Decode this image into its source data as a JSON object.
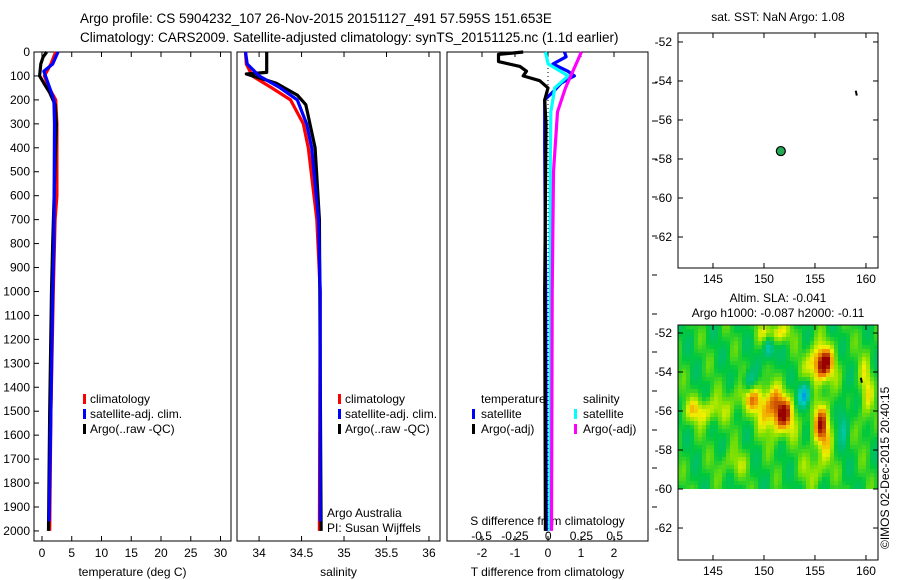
{
  "header": {
    "line1": "Argo profile: CS 5904232_107 26-Nov-2015 20151127_491 57.595S 151.653E",
    "line2": "Climatology: CARS2009. Satellite-adjusted climatology: synTS_20151125.nc (1.1d earlier)"
  },
  "credit": "©IMOS 02-Dec-2015 20:40:15",
  "chart_data": [
    {
      "type": "line",
      "id": "temperature-profile",
      "xlabel": "temperature (deg C)",
      "ylabel": "depth",
      "xlim": [
        -1.34,
        31.76
      ],
      "ylim": [
        0,
        2042
      ],
      "y_inverted": true,
      "xticks": [
        0,
        5,
        10,
        15,
        20,
        25,
        30
      ],
      "xtick_labels": [
        "0",
        "5",
        "10",
        "15",
        "20",
        "25",
        "30"
      ],
      "yticks": [
        0,
        100,
        200,
        300,
        400,
        500,
        600,
        700,
        800,
        900,
        1000,
        1100,
        1200,
        1300,
        1400,
        1500,
        1600,
        1700,
        1800,
        1900,
        2000
      ],
      "ytick_labels": [
        "0",
        "100",
        "200",
        "300",
        "400",
        "500",
        "600",
        "700",
        "800",
        "900",
        "1000",
        "1100",
        "1200",
        "1300",
        "1400",
        "1500",
        "1600",
        "1700",
        "1800",
        "1900",
        "2000"
      ],
      "legend": [
        "climatology",
        "satellite-adj. clim.",
        "Argo(..raw -QC)"
      ],
      "series": [
        {
          "name": "climatology",
          "color": "#ff0000",
          "depth": [
            0,
            50,
            100,
            150,
            200,
            300,
            600,
            700,
            1000,
            1500,
            2000
          ],
          "values": [
            2.3,
            1.5,
            0.4,
            1.2,
            2.3,
            2.5,
            2.5,
            2.2,
            1.9,
            1.5,
            1.3
          ]
        },
        {
          "name": "Argo(..raw -QC)",
          "color": "#000000",
          "depth": [
            0,
            20,
            50,
            100,
            130,
            170,
            220,
            300,
            800,
            1000,
            1500,
            2000
          ],
          "values": [
            0.8,
            0.2,
            -0.2,
            -0.4,
            0.3,
            1.3,
            2.2,
            2.4,
            1.8,
            1.6,
            1.3,
            1.1
          ]
        },
        {
          "name": "satellite-adj. clim.",
          "color": "#0000ff",
          "depth": [
            0,
            50,
            80,
            150,
            200,
            300,
            800,
            1000,
            1500,
            1960
          ],
          "values": [
            2.7,
            1.8,
            0.3,
            1.3,
            2.0,
            2.1,
            2.0,
            1.8,
            1.5,
            1.2
          ]
        }
      ]
    },
    {
      "type": "line",
      "id": "salinity-profile",
      "xlabel": "salinity",
      "xlim": [
        33.74,
        36.13
      ],
      "ylim": [
        0,
        2042
      ],
      "y_inverted": true,
      "xticks": [
        34,
        34.5,
        35,
        35.5,
        36
      ],
      "xtick_labels": [
        "34",
        "34.5",
        "35",
        "35.5",
        "36"
      ],
      "legend": [
        "climatology",
        "satellite-adj. clim.",
        "Argo(..raw -QC)"
      ],
      "annotation": [
        "Argo Australia",
        "PI: Susan Wijffels"
      ],
      "series": [
        {
          "name": "climatology",
          "color": "#ff0000",
          "depth": [
            0,
            50,
            100,
            150,
            200,
            300,
            400,
            700,
            1000,
            2000
          ],
          "values": [
            33.84,
            33.85,
            33.92,
            34.15,
            34.37,
            34.52,
            34.58,
            34.68,
            34.72,
            34.71
          ]
        },
        {
          "name": "Argo(..raw -QC)",
          "color": "#000000",
          "depth": [
            0,
            85,
            92,
            130,
            180,
            220,
            400,
            700,
            2000
          ],
          "values": [
            34.09,
            34.09,
            33.85,
            34.2,
            34.45,
            34.55,
            34.66,
            34.71,
            34.73
          ]
        },
        {
          "name": "satellite-adj. clim.",
          "color": "#0000ff",
          "depth": [
            0,
            50,
            100,
            150,
            200,
            300,
            400,
            700,
            1000,
            1960
          ],
          "values": [
            33.84,
            33.86,
            34.0,
            34.25,
            34.45,
            34.56,
            34.62,
            34.7,
            34.72,
            34.72
          ]
        }
      ]
    },
    {
      "type": "line",
      "id": "difference-profile",
      "xlabel": "T difference from climatology",
      "x2label": "S difference from climatology",
      "xlim": [
        -3.06,
        3.03
      ],
      "x2lim": [
        -0.76,
        0.75
      ],
      "ylim": [
        0,
        2042
      ],
      "y_inverted": true,
      "xticks": [
        -2,
        -1,
        0,
        1,
        2
      ],
      "xtick_labels": [
        "-2",
        "-1",
        "0",
        "1",
        "2"
      ],
      "x2ticks": [
        -0.5,
        -0.25,
        0,
        0.25,
        0.5
      ],
      "x2tick_labels": [
        "-0.5",
        "-0.25",
        "0",
        "0.25",
        "0.5"
      ],
      "legend_groups": [
        {
          "title": "temperature",
          "items": [
            "satellite",
            "Argo(-adj)"
          ]
        },
        {
          "title": "salinity",
          "items": [
            "satellite",
            "Argo(-adj)"
          ]
        }
      ],
      "series": [
        {
          "name": "temperature satellite",
          "axis": "T",
          "color": "#0000ff",
          "depth": [
            0,
            20,
            50,
            80,
            100,
            130,
            160,
            200,
            400,
            1000,
            2000
          ],
          "values": [
            0.5,
            0.55,
            0.15,
            0.6,
            0.8,
            0.4,
            0.2,
            -0.1,
            -0.1,
            -0.07,
            -0.05
          ]
        },
        {
          "name": "temperature Argo(-adj)",
          "axis": "T",
          "color": "#000000",
          "depth": [
            0,
            10,
            40,
            60,
            80,
            100,
            120,
            150,
            200,
            300,
            1000,
            2000
          ],
          "values": [
            -0.75,
            -1.5,
            -1.5,
            -0.85,
            -0.65,
            -0.75,
            -0.25,
            0,
            -0.1,
            -0.06,
            -0.1,
            -0.08
          ]
        },
        {
          "name": "salinity satellite",
          "axis": "S",
          "color": "#00ffff",
          "depth": [
            0,
            50,
            100,
            150,
            250,
            500,
            1000,
            2000
          ],
          "values": [
            -0.02,
            0.0,
            0.15,
            0.05,
            0.02,
            0.015,
            0.015,
            0.012
          ]
        },
        {
          "name": "salinity Argo(-adj)",
          "axis": "S",
          "color": "#ff00ff",
          "depth": [
            0,
            50,
            100,
            150,
            250,
            500,
            1000,
            2000
          ],
          "values": [
            0.25,
            0.21,
            0.17,
            0.13,
            0.07,
            0.04,
            0.03,
            0.025
          ]
        }
      ]
    },
    {
      "type": "scatter",
      "id": "location-map",
      "title": "sat. SST: NaN Argo: 1.08",
      "xlim": [
        141.57,
        161.18
      ],
      "ylim": [
        -63.59,
        -51.54
      ],
      "xticks": [
        145,
        150,
        155,
        160
      ],
      "xtick_labels": [
        "145",
        "150",
        "155",
        "160"
      ],
      "yticks": [
        -52,
        -54,
        -56,
        -58,
        -60,
        -62
      ],
      "ytick_labels": [
        "-52",
        "-54",
        "-56",
        "-58",
        "-60",
        "-62"
      ],
      "points": [
        {
          "lon": 151.653,
          "lat": -57.595,
          "color": "#22aa55"
        }
      ],
      "track": [
        [
          159.0,
          -54.5
        ],
        [
          159.1,
          -54.75
        ]
      ]
    },
    {
      "type": "heatmap",
      "id": "sla-map",
      "title1": "Altim. SLA: -0.041",
      "title2": "Argo h1000: -0.087 h2000: -0.11",
      "xlim": [
        141.57,
        161.18
      ],
      "ylim": [
        -63.64,
        -51.59
      ],
      "data_lat_min": -60,
      "xticks": [
        145,
        150,
        155,
        160
      ],
      "xtick_labels": [
        "145",
        "150",
        "155",
        "160"
      ],
      "yticks": [
        -52,
        -54,
        -56,
        -58,
        -60,
        -62
      ],
      "ytick_labels": [
        "-52",
        "-54",
        "-56",
        "-58",
        "-60",
        "-62"
      ],
      "anomalies": [
        {
          "lon": 155.6,
          "lat": -53.6,
          "amp": 1.0,
          "slon": 0.9,
          "slat": 0.7
        },
        {
          "lon": 151.5,
          "lat": -56.2,
          "amp": 0.85,
          "slon": 1.2,
          "slat": 0.8
        },
        {
          "lon": 155.7,
          "lat": -56.8,
          "amp": 0.75,
          "slon": 0.7,
          "slat": 1.0
        },
        {
          "lon": 149.0,
          "lat": -55.3,
          "amp": 0.5,
          "slon": 1.5,
          "slat": 0.6
        },
        {
          "lon": 144.0,
          "lat": -56.0,
          "amp": 0.5,
          "slon": 1.5,
          "slat": 0.5
        },
        {
          "lon": 151.0,
          "lat": -52.0,
          "amp": 0.6,
          "slon": 1.0,
          "slat": 0.4
        },
        {
          "lon": 154.0,
          "lat": -55.2,
          "amp": -0.8,
          "slon": 0.5,
          "slat": 0.5
        },
        {
          "lon": 150.5,
          "lat": -52.8,
          "amp": -0.6,
          "slon": 0.4,
          "slat": 0.5
        },
        {
          "lon": 148.5,
          "lat": -54.5,
          "amp": -0.5,
          "slon": 0.5,
          "slat": 0.4
        },
        {
          "lon": 160.0,
          "lat": -55.0,
          "amp": 0.4,
          "slon": 0.5,
          "slat": 1.5
        },
        {
          "lon": 157.8,
          "lat": -56.5,
          "amp": -0.4,
          "slon": 0.4,
          "slat": 0.8
        },
        {
          "lon": 147.0,
          "lat": -58.7,
          "amp": 0.3,
          "slon": 1.0,
          "slat": 0.5
        },
        {
          "lon": 155.0,
          "lat": -59.0,
          "amp": 0.3,
          "slon": 1.0,
          "slat": 0.6
        }
      ],
      "track": [
        [
          159.5,
          -54.3
        ],
        [
          159.6,
          -54.55
        ]
      ]
    }
  ]
}
